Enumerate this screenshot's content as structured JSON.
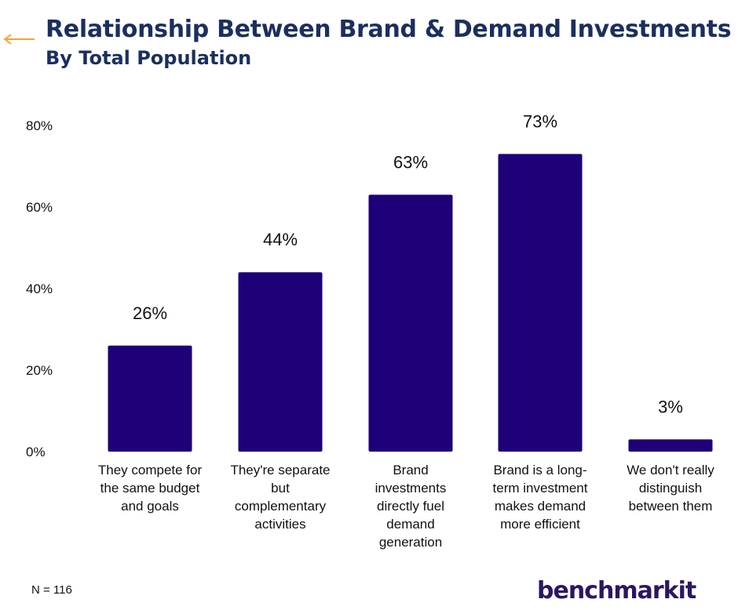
{
  "header": {
    "title": "Relationship Between Brand & Demand Investments",
    "subtitle": "By Total Population"
  },
  "footer": {
    "note": "N = 116",
    "logo_text": "benchmarkit"
  },
  "colors": {
    "bar": "#1e0078",
    "title": "#1b2f5e",
    "accent_arrow": "#f2a33a"
  },
  "chart_data": {
    "type": "bar",
    "categories": [
      [
        "They compete for",
        "the same budget",
        "and goals"
      ],
      [
        "They're separate",
        "but",
        "complementary",
        "activities"
      ],
      [
        "Brand",
        "investments",
        "directly fuel",
        "demand",
        "generation"
      ],
      [
        "Brand is a long-",
        "term investment",
        "makes demand",
        "more efficient"
      ],
      [
        "We don't really",
        "distinguish",
        "between them"
      ]
    ],
    "values": [
      26,
      44,
      63,
      73,
      3
    ],
    "data_labels": [
      "26%",
      "44%",
      "63%",
      "73%",
      "3%"
    ],
    "y_ticks": [
      "0%",
      "20%",
      "40%",
      "60%",
      "80%"
    ],
    "ylim": [
      0,
      80
    ],
    "grid": false,
    "legend": "none"
  }
}
